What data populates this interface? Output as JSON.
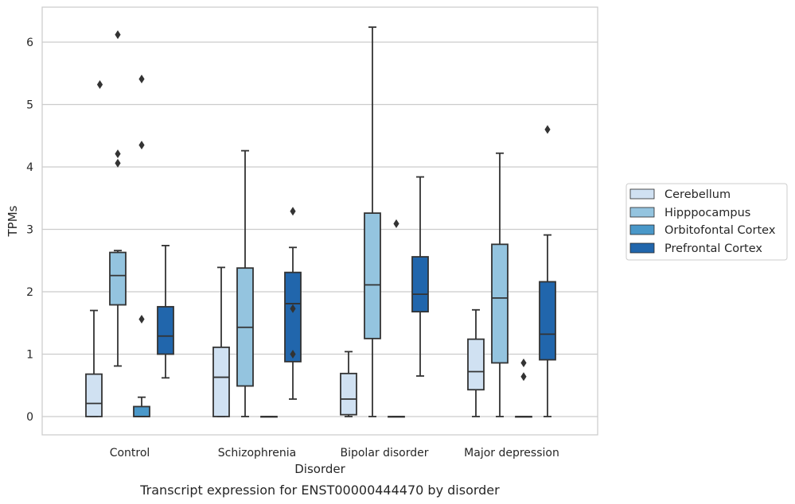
{
  "chart_data": {
    "type": "box",
    "caption": "Transcript expression for ENST00000444470 by disorder",
    "xlabel": "Disorder",
    "ylabel": "TPMs",
    "ylim": [
      -0.3,
      6.6
    ],
    "yticks": [
      0,
      1,
      2,
      3,
      4,
      5,
      6
    ],
    "grid": "horizontal",
    "legend_position": "right",
    "categories": [
      "Control",
      "Schizophrenia",
      "Bipolar disorder",
      "Major depression"
    ],
    "series": [
      {
        "name": "Cerebellum",
        "color": "#d0e1f2",
        "boxes": [
          {
            "whislo": 0,
            "q1": 0,
            "med": 0.21,
            "q3": 0.68,
            "whishi": 1.7,
            "fliers": []
          },
          {
            "whislo": 0,
            "q1": 0,
            "med": 0.63,
            "q3": 1.11,
            "whishi": 2.39,
            "fliers": []
          },
          {
            "whislo": 0,
            "q1": 0.03,
            "med": 0.28,
            "q3": 0.69,
            "whishi": 1.04,
            "fliers": []
          },
          {
            "whislo": 0,
            "q1": 0.43,
            "med": 0.72,
            "q3": 1.24,
            "whishi": 1.71,
            "fliers": []
          }
        ]
      },
      {
        "name": "Hipppocampus",
        "color": "#94c4df",
        "boxes": [
          {
            "whislo": 0.81,
            "q1": 1.79,
            "med": 2.26,
            "q3": 2.63,
            "whishi": 2.66,
            "fliers": [
              4.06,
              4.21,
              6.12
            ]
          },
          {
            "whislo": 0,
            "q1": 0.49,
            "med": 1.43,
            "q3": 2.38,
            "whishi": 4.26,
            "fliers": []
          },
          {
            "whislo": 0,
            "q1": 1.25,
            "med": 2.11,
            "q3": 3.26,
            "whishi": 6.24,
            "fliers": []
          },
          {
            "whislo": 0,
            "q1": 0.86,
            "med": 1.9,
            "q3": 2.76,
            "whishi": 4.22,
            "fliers": []
          }
        ]
      },
      {
        "name": "Orbitofontal Cortex",
        "color": "#4a98c9",
        "boxes": [
          {
            "whislo": 0,
            "q1": 0,
            "med": 0,
            "q3": 0.16,
            "whishi": 0.31,
            "fliers": [
              1.56,
              4.35,
              5.41
            ]
          },
          {
            "whislo": 0,
            "q1": 0,
            "med": 0,
            "q3": 0,
            "whishi": 0,
            "fliers": []
          },
          {
            "whislo": 0,
            "q1": 0,
            "med": 0,
            "q3": 0,
            "whishi": 0,
            "fliers": [
              3.09
            ]
          },
          {
            "whislo": 0,
            "q1": 0,
            "med": 0,
            "q3": 0,
            "whishi": 0,
            "fliers": [
              0.64,
              0.86
            ]
          }
        ]
      },
      {
        "name": "Prefrontal Cortex",
        "color": "#2166ac",
        "boxes": [
          {
            "whislo": 0.62,
            "q1": 1.0,
            "med": 1.29,
            "q3": 1.76,
            "whishi": 2.74,
            "fliers": []
          },
          {
            "whislo": 0.28,
            "q1": 0.88,
            "med": 1.81,
            "q3": 2.31,
            "whishi": 2.71,
            "fliers": [
              1.0,
              1.73,
              3.29
            ]
          },
          {
            "whislo": 0.65,
            "q1": 1.68,
            "med": 1.96,
            "q3": 2.56,
            "whishi": 3.84,
            "fliers": []
          },
          {
            "whislo": 0,
            "q1": 0.91,
            "med": 1.32,
            "q3": 2.16,
            "whishi": 2.91,
            "fliers": [
              4.6
            ]
          }
        ]
      }
    ],
    "extra_fliers": [
      {
        "category": "Control",
        "series": "Cerebellum",
        "value": 5.32
      }
    ]
  }
}
